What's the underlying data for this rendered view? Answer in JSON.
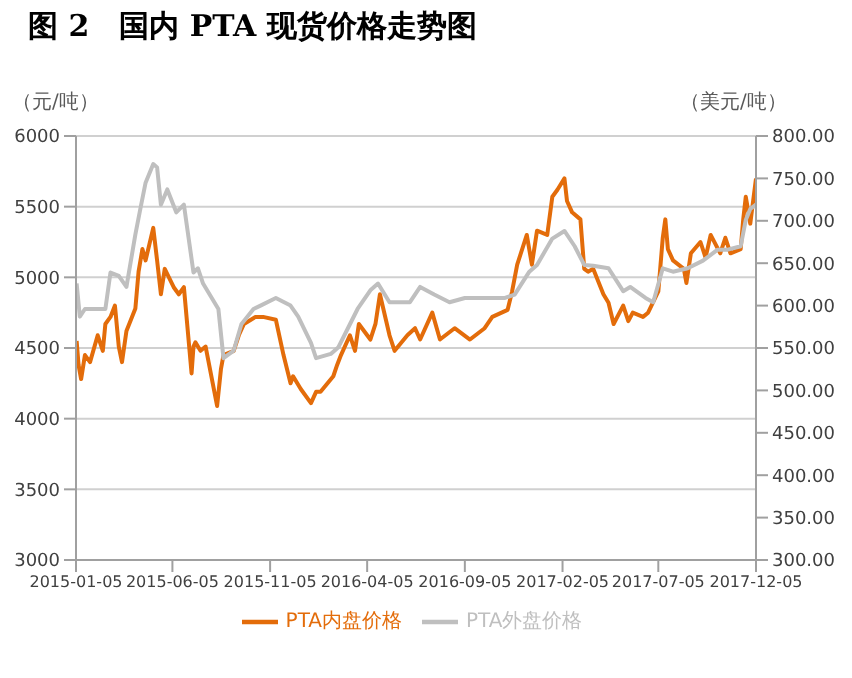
{
  "chart_data": {
    "type": "line",
    "title": "图 2　国内 PTA 现货价格走势图",
    "ylabel": "（元/吨）",
    "y2label": "（美元/吨）",
    "xlim": [
      "2015-01-05",
      "2017-12-05"
    ],
    "xticks": [
      "2015-01-05",
      "2015-06-05",
      "2015-11-05",
      "2016-04-05",
      "2016-09-05",
      "2017-02-05",
      "2017-07-05",
      "2017-12-05"
    ],
    "ylim": [
      3000,
      6000
    ],
    "yticks": [
      3000,
      3500,
      4000,
      4500,
      5000,
      5500,
      6000
    ],
    "y2lim": [
      300,
      800
    ],
    "y2ticks": [
      {
        "value": 300,
        "label": "300.00"
      },
      {
        "value": 350,
        "label": "350.00"
      },
      {
        "value": 400,
        "label": "400.00"
      },
      {
        "value": 450,
        "label": "450.00"
      },
      {
        "value": 500,
        "label": "500.00"
      },
      {
        "value": 550,
        "label": "550.00"
      },
      {
        "value": 600,
        "label": "600.00"
      },
      {
        "value": 650,
        "label": "650.00"
      },
      {
        "value": 700,
        "label": "700.00"
      },
      {
        "value": 750,
        "label": "750.00"
      },
      {
        "value": 800,
        "label": "800.00"
      }
    ],
    "grid": "y",
    "legend": "bottom",
    "marker": "none",
    "line_style": "solid",
    "series": [
      {
        "name": "PTA内盘价格",
        "color": "#e36c0a",
        "x": [
          "2015-01-06",
          "2015-01-09",
          "2015-01-13",
          "2015-01-19",
          "2015-01-27",
          "2015-02-08",
          "2015-02-16",
          "2015-02-20",
          "2015-02-28",
          "2015-03-07",
          "2015-03-13",
          "2015-03-18",
          "2015-03-25",
          "2015-04-08",
          "2015-04-13",
          "2015-04-19",
          "2015-04-24",
          "2015-05-06",
          "2015-05-12",
          "2015-05-18",
          "2015-05-24",
          "2015-06-07",
          "2015-06-15",
          "2015-06-23",
          "2015-07-05",
          "2015-07-08",
          "2015-07-11",
          "2015-07-19",
          "2015-07-27",
          "2015-08-14",
          "2015-08-20",
          "2015-08-24",
          "2015-09-09",
          "2015-09-17",
          "2015-09-25",
          "2015-10-13",
          "2015-10-25",
          "2015-11-14",
          "2015-11-26",
          "2015-12-07",
          "2015-12-11",
          "2015-12-23",
          "2016-01-08",
          "2016-01-16",
          "2016-01-23",
          "2016-02-12",
          "2016-02-18",
          "2016-02-24",
          "2016-03-09",
          "2016-03-17",
          "2016-03-23",
          "2016-04-10",
          "2016-04-18",
          "2016-04-25",
          "2016-05-10",
          "2016-05-18",
          "2016-06-07",
          "2016-06-19",
          "2016-06-27",
          "2016-07-16",
          "2016-07-28",
          "2016-08-20",
          "2016-09-13",
          "2016-10-06",
          "2016-10-18",
          "2016-11-11",
          "2016-11-18",
          "2016-11-26",
          "2016-12-11",
          "2016-12-19",
          "2016-12-27",
          "2017-01-12",
          "2017-01-20",
          "2017-01-28",
          "2017-02-08",
          "2017-02-12",
          "2017-02-20",
          "2017-03-05",
          "2017-03-11",
          "2017-03-17",
          "2017-03-25",
          "2017-04-10",
          "2017-04-18",
          "2017-04-26",
          "2017-05-11",
          "2017-05-19",
          "2017-05-26",
          "2017-06-11",
          "2017-06-19",
          "2017-07-05",
          "2017-07-12",
          "2017-07-16",
          "2017-07-20",
          "2017-07-28",
          "2017-08-14",
          "2017-08-18",
          "2017-08-25",
          "2017-09-09",
          "2017-09-17",
          "2017-09-25",
          "2017-10-10",
          "2017-10-18",
          "2017-10-26",
          "2017-11-11",
          "2017-11-15",
          "2017-11-19",
          "2017-11-22",
          "2017-11-26",
          "2017-12-05"
        ],
        "values": [
          4550,
          4380,
          4280,
          4450,
          4400,
          4590,
          4480,
          4670,
          4720,
          4800,
          4510,
          4400,
          4620,
          4780,
          5040,
          5200,
          5120,
          5350,
          5120,
          4880,
          5060,
          4930,
          4880,
          4930,
          4320,
          4510,
          4540,
          4480,
          4510,
          4090,
          4350,
          4450,
          4480,
          4590,
          4670,
          4720,
          4720,
          4700,
          4450,
          4250,
          4300,
          4210,
          4110,
          4190,
          4190,
          4300,
          4380,
          4450,
          4590,
          4480,
          4670,
          4560,
          4670,
          4880,
          4590,
          4480,
          4590,
          4640,
          4560,
          4750,
          4560,
          4640,
          4560,
          4640,
          4720,
          4770,
          4900,
          5090,
          5300,
          5090,
          5330,
          5300,
          5570,
          5620,
          5700,
          5540,
          5460,
          5410,
          5060,
          5040,
          5060,
          4880,
          4820,
          4670,
          4800,
          4690,
          4750,
          4720,
          4750,
          4900,
          5280,
          5410,
          5200,
          5120,
          5060,
          4960,
          5170,
          5250,
          5140,
          5300,
          5170,
          5280,
          5170,
          5200,
          5410,
          5570,
          5490,
          5380,
          5700
        ]
      },
      {
        "name": "PTA外盘价格",
        "color": "#bfbfbf",
        "axis": "y2",
        "x": [
          "2015-01-06",
          "2015-01-11",
          "2015-01-19",
          "2015-02-08",
          "2015-02-20",
          "2015-02-28",
          "2015-03-13",
          "2015-03-25",
          "2015-04-08",
          "2015-04-16",
          "2015-04-24",
          "2015-05-06",
          "2015-05-12",
          "2015-05-18",
          "2015-05-28",
          "2015-06-11",
          "2015-06-23",
          "2015-07-08",
          "2015-07-15",
          "2015-07-23",
          "2015-08-16",
          "2015-08-24",
          "2015-09-09",
          "2015-09-21",
          "2015-10-10",
          "2015-10-21",
          "2015-11-14",
          "2015-12-07",
          "2015-12-19",
          "2016-01-08",
          "2016-01-16",
          "2016-02-08",
          "2016-02-20",
          "2016-03-09",
          "2016-03-21",
          "2016-04-10",
          "2016-04-22",
          "2016-05-10",
          "2016-06-11",
          "2016-06-27",
          "2016-07-19",
          "2016-08-12",
          "2016-09-05",
          "2016-10-06",
          "2016-11-07",
          "2016-11-22",
          "2016-12-15",
          "2016-12-27",
          "2017-01-20",
          "2017-02-08",
          "2017-02-24",
          "2017-03-11",
          "2017-03-25",
          "2017-04-18",
          "2017-05-11",
          "2017-05-22",
          "2017-06-15",
          "2017-06-27",
          "2017-07-12",
          "2017-07-28",
          "2017-08-20",
          "2017-09-13",
          "2017-10-06",
          "2017-10-22",
          "2017-11-11",
          "2017-11-19",
          "2017-11-26",
          "2017-12-05"
        ],
        "values": [
          626,
          587,
          596,
          596,
          596,
          639,
          635,
          622,
          684,
          715,
          745,
          767,
          763,
          719,
          737,
          710,
          719,
          639,
          644,
          626,
          596,
          538,
          547,
          578,
          596,
          600,
          609,
          600,
          587,
          556,
          538,
          543,
          551,
          578,
          596,
          618,
          626,
          604,
          604,
          622,
          613,
          604,
          609,
          609,
          609,
          613,
          640,
          648,
          679,
          688,
          670,
          648,
          647,
          644,
          617,
          622,
          609,
          604,
          644,
          640,
          644,
          653,
          666,
          666,
          670,
          701,
          714,
          719
        ]
      }
    ]
  }
}
